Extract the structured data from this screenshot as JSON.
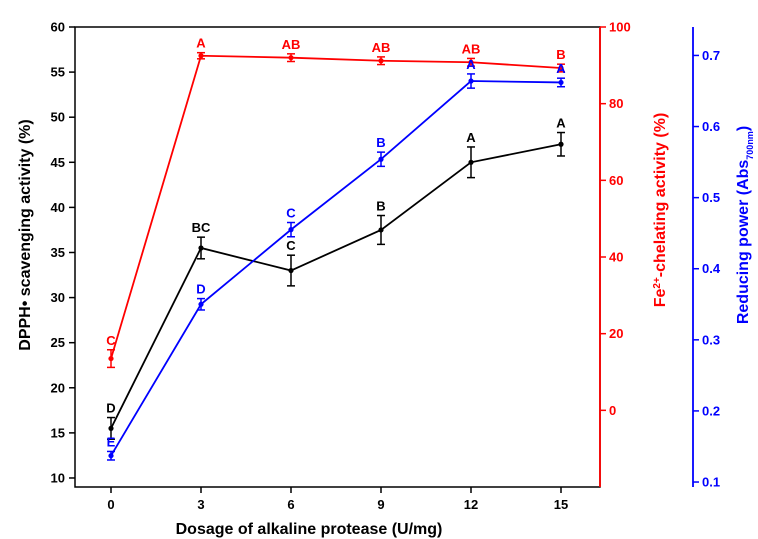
{
  "chart_data": {
    "type": "line",
    "xlabel": "Dosage of alkaline protease (U/mg)",
    "x": [
      0,
      3,
      6,
      9,
      12,
      15
    ],
    "x_ticks": [
      "0",
      "3",
      "6",
      "9",
      "12",
      "15"
    ],
    "xlim": [
      -1.2,
      16.3
    ],
    "axes": {
      "left": {
        "label": "DPPH• scavenging activity (%)",
        "ylim": [
          9,
          60
        ],
        "ticks": [
          10,
          15,
          20,
          25,
          30,
          35,
          40,
          45,
          50,
          55,
          60
        ],
        "color": "#000000"
      },
      "right1": {
        "label_prefix": "Fe",
        "label_sup": "2+",
        "label_suffix": "-chelating activity (%)",
        "ylim": [
          -20,
          100
        ],
        "ticks": [
          0,
          20,
          40,
          60,
          80,
          100
        ],
        "color": "#ff0000"
      },
      "right2": {
        "label_prefix": "Reducing power (Abs",
        "label_sub": "700nm",
        "label_suffix": ")",
        "ylim": [
          0.093,
          0.74
        ],
        "ticks": [
          0.1,
          0.2,
          0.3,
          0.4,
          0.5,
          0.6,
          0.7
        ],
        "tick_labels": [
          "0.1",
          "0.2",
          "0.3",
          "0.4",
          "0.5",
          "0.6",
          "0.7"
        ],
        "color": "#0000ff"
      }
    },
    "series": [
      {
        "axis": "left",
        "color": "#000000",
        "values": [
          15.5,
          35.5,
          33.0,
          37.5,
          45.0,
          47.0
        ],
        "errors": [
          1.2,
          1.2,
          1.7,
          1.6,
          1.7,
          1.3
        ],
        "labels": [
          "D",
          "BC",
          "C",
          "B",
          "A",
          "A"
        ]
      },
      {
        "axis": "right1",
        "color": "#ff0000",
        "values": [
          13.5,
          92.5,
          92.0,
          91.2,
          90.8,
          89.3
        ],
        "errors": [
          2.3,
          0.8,
          1.0,
          1.0,
          1.0,
          1.0
        ],
        "labels": [
          "C",
          "A",
          "AB",
          "AB",
          "AB",
          "B"
        ]
      },
      {
        "axis": "right2",
        "color": "#0000ff",
        "values": [
          0.137,
          0.35,
          0.455,
          0.554,
          0.664,
          0.662
        ],
        "errors": [
          0.006,
          0.008,
          0.01,
          0.01,
          0.01,
          0.006
        ],
        "labels": [
          "E",
          "D",
          "C",
          "B",
          "A",
          "A"
        ]
      }
    ]
  }
}
